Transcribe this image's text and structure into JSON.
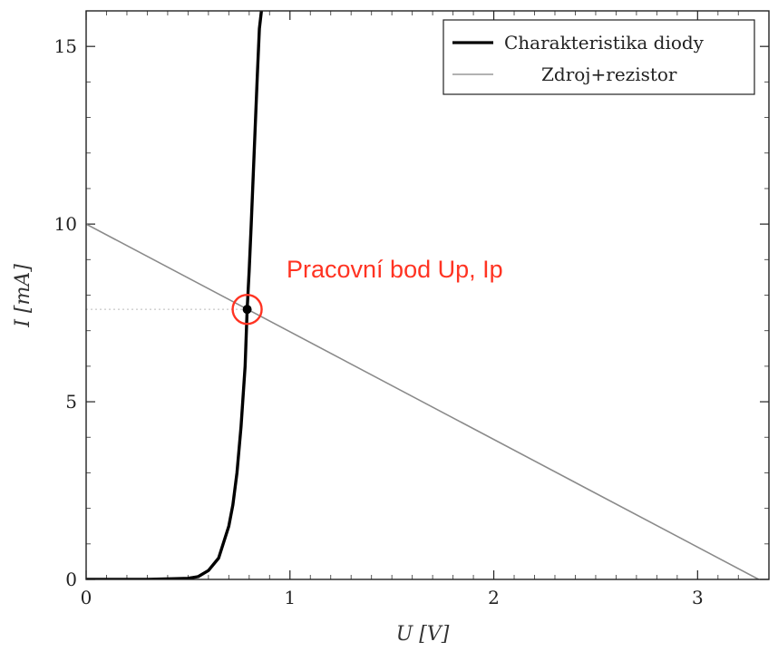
{
  "chart_data": {
    "type": "line",
    "xlabel": "U [V]",
    "ylabel": "I [mA]",
    "xlim": [
      0,
      3.35
    ],
    "ylim": [
      0,
      16
    ],
    "x_ticks": [
      0,
      1,
      2,
      3
    ],
    "y_ticks": [
      0,
      5,
      10,
      15
    ],
    "grid": false,
    "legend_position": "top-right",
    "series": [
      {
        "name": "Charakteristika diody",
        "color": "#000000",
        "x": [
          0.0,
          0.3,
          0.5,
          0.55,
          0.6,
          0.65,
          0.7,
          0.72,
          0.74,
          0.76,
          0.78,
          0.79,
          0.8,
          0.81,
          0.82,
          0.83,
          0.84,
          0.85,
          0.86
        ],
        "y": [
          0.0,
          0.0,
          0.03,
          0.08,
          0.25,
          0.6,
          1.5,
          2.1,
          3.0,
          4.3,
          6.0,
          7.6,
          8.7,
          10.0,
          11.4,
          12.8,
          14.2,
          15.5,
          16.0
        ]
      },
      {
        "name": "Zdroj+rezistor",
        "color": "#888888",
        "x": [
          0.0,
          3.3
        ],
        "y": [
          10.0,
          0.0
        ]
      }
    ],
    "operating_point": {
      "x": 0.79,
      "y": 7.6,
      "label": "Pracovní bod Up, Ip",
      "color": "#ff3322"
    }
  }
}
